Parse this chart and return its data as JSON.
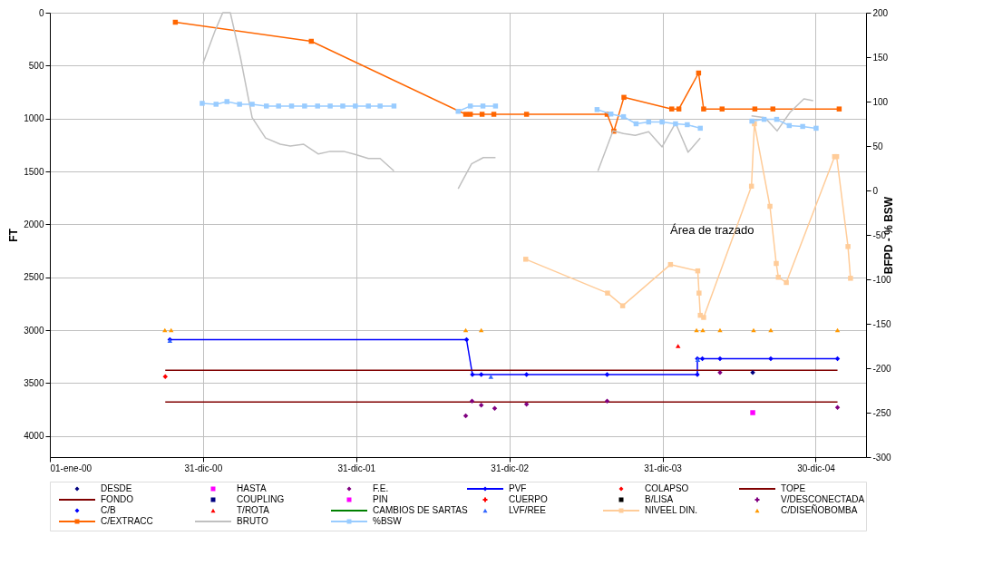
{
  "chart_data": {
    "type": "line",
    "ylabel": "FT",
    "y2label": "BFPD - % BSW",
    "xlim": [
      "2000-01-01",
      "2005-04-29"
    ],
    "xticks": [
      {
        "value": "2000-01-01",
        "label": "01-ene-00"
      },
      {
        "value": "2000-12-31",
        "label": "31-dic-00"
      },
      {
        "value": "2001-12-31",
        "label": "31-dic-01"
      },
      {
        "value": "2002-12-31",
        "label": "31-dic-02"
      },
      {
        "value": "2003-12-31",
        "label": "31-dic-03"
      },
      {
        "value": "2004-12-30",
        "label": "30-dic-04"
      }
    ],
    "ylim": [
      4200,
      0
    ],
    "yticks": [
      0,
      500,
      1000,
      1500,
      2000,
      2500,
      3000,
      3500,
      4000
    ],
    "y2lim": [
      -300,
      200
    ],
    "y2ticks": [
      -300,
      -250,
      -200,
      -150,
      -100,
      -50,
      0,
      50,
      100,
      150,
      200
    ],
    "grid": true,
    "legend": "bottom",
    "annotations": [
      "Área de trazado"
    ],
    "series": [
      {
        "name": "DESDE",
        "type": "scatter",
        "marker": "diamond",
        "color": "#000080",
        "x": [
          "2004-08-02"
        ],
        "values": [
          3400
        ]
      },
      {
        "name": "HASTA",
        "type": "scatter",
        "marker": "square",
        "color": "#ff00ff",
        "x": [
          "2004-08-02"
        ],
        "values": [
          3780
        ]
      },
      {
        "name": "F.E.",
        "type": "scatter",
        "marker": "diamond",
        "color": "#800080",
        "x": [
          "2002-09-18",
          "2002-10-03",
          "2002-10-25",
          "2002-11-26",
          "2003-02-10",
          "2003-08-21",
          "2004-05-16",
          "2005-02-20"
        ],
        "values": [
          3810,
          3670,
          3710,
          3740,
          3700,
          3670,
          3400,
          3730
        ]
      },
      {
        "name": "PVF",
        "marker": "diamond",
        "color": "#0000ff",
        "x": [
          "2000-10-13",
          "2002-09-20",
          "2002-10-04",
          "2002-10-25",
          "2003-02-10",
          "2003-08-21",
          "2004-03-23",
          "2004-03-23",
          "2004-04-04",
          "2004-05-16",
          "2004-09-14",
          "2005-02-20"
        ],
        "values": [
          3090,
          3090,
          3420,
          3420,
          3420,
          3420,
          3420,
          3270,
          3270,
          3270,
          3270,
          3270
        ]
      },
      {
        "name": "COLAPSO",
        "type": "scatter",
        "marker": "diamond",
        "color": "#ff0000",
        "x": [
          "2000-10-02"
        ],
        "values": [
          3440
        ]
      },
      {
        "name": "TOPE",
        "marker": "none",
        "color": "#800000",
        "x": [
          "2000-10-02",
          "2005-02-20"
        ],
        "values": [
          3380,
          3380
        ]
      },
      {
        "name": "FONDO",
        "marker": "none",
        "color": "#800000",
        "x": [
          "2000-10-02",
          "2005-02-20"
        ],
        "values": [
          3680,
          3680
        ]
      },
      {
        "name": "COUPLING",
        "type": "scatter",
        "marker": "square",
        "color": "#000080"
      },
      {
        "name": "PIN",
        "type": "scatter",
        "marker": "square",
        "color": "#ff00ff"
      },
      {
        "name": "CUERPO",
        "type": "scatter",
        "marker": "cross",
        "color": "#ff0000"
      },
      {
        "name": "B/LISA",
        "type": "scatter",
        "marker": "square",
        "color": "#000000"
      },
      {
        "name": "V/DESCONECTADA",
        "type": "scatter",
        "marker": "cross",
        "color": "#800080"
      },
      {
        "name": "C/B",
        "type": "scatter",
        "marker": "diamond",
        "color": "#0000ff"
      },
      {
        "name": "T/ROTA",
        "type": "scatter",
        "marker": "triangle",
        "color": "#ff0000",
        "x": [
          "2004-02-06"
        ],
        "values": [
          3150
        ]
      },
      {
        "name": "CAMBIOS DE SARTAS",
        "marker": "none",
        "color": "#008000"
      },
      {
        "name": "LVF/REE",
        "type": "scatter",
        "marker": "triangle",
        "color": "#3366ff",
        "x": [
          "2000-10-13",
          "2002-11-17",
          "2004-03-24"
        ],
        "values": [
          3100,
          3440,
          3280
        ]
      },
      {
        "name": "NIVEEL DIN.",
        "marker": "square",
        "color": "#ffcc99",
        "x": [
          "2003-02-08",
          "2003-08-22",
          "2003-09-27",
          "2004-01-19",
          "2004-03-24",
          "2004-03-27",
          "2004-03-30",
          "2004-04-07",
          "2004-07-30",
          "2004-08-06",
          "2004-09-12",
          "2004-09-27",
          "2004-10-02",
          "2004-10-21",
          "2005-02-13",
          "2005-02-18",
          "2005-03-17",
          "2005-03-23"
        ],
        "values": [
          2330,
          2650,
          2770,
          2380,
          2440,
          2650,
          2860,
          2880,
          1640,
          1050,
          1830,
          2370,
          2500,
          2550,
          1360,
          1360,
          2210,
          2510
        ]
      },
      {
        "name": "C/DISEÑOBOMBA",
        "type": "scatter",
        "marker": "triangle",
        "color": "#ff9900",
        "x": [
          "2000-10-01",
          "2000-10-16",
          "2002-09-18",
          "2002-10-25",
          "2004-03-21",
          "2004-04-05",
          "2004-05-16",
          "2004-08-04",
          "2004-09-14",
          "2005-02-20"
        ],
        "values": [
          3000,
          3000,
          3000,
          3000,
          3000,
          3000,
          3000,
          3000,
          3000,
          3000
        ]
      },
      {
        "name": "C/EXTRACC",
        "marker": "square",
        "color": "#ff6600",
        "x": [
          "2000-10-26",
          "2001-09-15",
          "2002-09-18",
          "2002-09-29",
          "2002-10-27",
          "2002-11-24",
          "2003-02-10",
          "2003-08-21",
          "2003-09-06",
          "2003-09-30",
          "2004-01-22",
          "2004-02-08",
          "2004-03-26",
          "2004-04-07",
          "2004-05-21",
          "2004-08-07",
          "2004-09-19",
          "2005-02-24"
        ],
        "values": [
          90,
          270,
          960,
          960,
          960,
          960,
          960,
          960,
          1120,
          800,
          910,
          910,
          570,
          910,
          910,
          910,
          910,
          910
        ]
      },
      {
        "name": "BRUTO",
        "marker": "none",
        "color": "#c0c0c0",
        "axis": "y2",
        "x": [
          "2000-12-31",
          "2001-01-29",
          "2001-02-16",
          "2001-03-06",
          "2001-03-30",
          "2001-04-27",
          "2001-05-29",
          "2001-07-03",
          "2001-07-27",
          "2001-08-28",
          "2001-10-02",
          "2001-10-30",
          "2001-12-01",
          "2002-01-01",
          "2002-01-29",
          "2002-02-26",
          "2002-03-31",
          "2002-06-01",
          "2002-08-31",
          "2002-10-02",
          "2002-10-30",
          "2002-11-28",
          "2003-04-01",
          "2003-07-30",
          "2003-09-04",
          "2003-09-29",
          "2003-10-27",
          "2003-11-28",
          "2003-12-30",
          "2004-01-31",
          "2004-03-01",
          "2004-03-30",
          "2004-05-15",
          "2004-07-30",
          "2004-08-31",
          "2004-09-29",
          "2004-10-30",
          "2004-12-02",
          "2004-12-24"
        ],
        "values": [
          143,
          180,
          200,
          200,
          150,
          82,
          59,
          52,
          50,
          52,
          41,
          44,
          44,
          40,
          36,
          36,
          22,
          null,
          2,
          30,
          37,
          37,
          null,
          22,
          67,
          64,
          62,
          66,
          49,
          76,
          43,
          59,
          null,
          84,
          82,
          67,
          88,
          103,
          101
        ]
      },
      {
        "name": "%BSW",
        "marker": "square",
        "color": "#99ccff",
        "axis": "y2",
        "x": [
          "2000-12-29",
          "2001-01-31",
          "2001-02-26",
          "2001-03-28",
          "2001-04-27",
          "2001-05-31",
          "2001-06-29",
          "2001-07-30",
          "2001-08-30",
          "2001-09-30",
          "2001-10-30",
          "2001-11-29",
          "2001-12-29",
          "2002-01-29",
          "2002-02-26",
          "2002-03-31",
          "2002-06-01",
          "2002-08-31",
          "2002-09-29",
          "2002-10-29",
          "2002-11-28",
          "2003-04-01",
          "2003-07-28",
          "2003-08-30",
          "2003-09-29",
          "2003-10-29",
          "2003-11-28",
          "2003-12-30",
          "2004-01-31",
          "2004-02-28",
          "2004-03-30",
          "2004-05-15",
          "2004-07-31",
          "2004-08-29",
          "2004-09-28",
          "2004-10-28",
          "2004-11-29",
          "2004-12-31"
        ],
        "values": [
          98,
          97,
          100,
          97,
          97,
          95,
          95,
          95,
          95,
          95,
          95,
          95,
          95,
          95,
          95,
          95,
          null,
          89,
          95,
          95,
          95,
          null,
          91,
          86,
          83,
          75,
          77,
          77,
          75,
          74,
          70,
          null,
          78,
          80,
          80,
          73,
          72,
          70
        ]
      }
    ]
  }
}
